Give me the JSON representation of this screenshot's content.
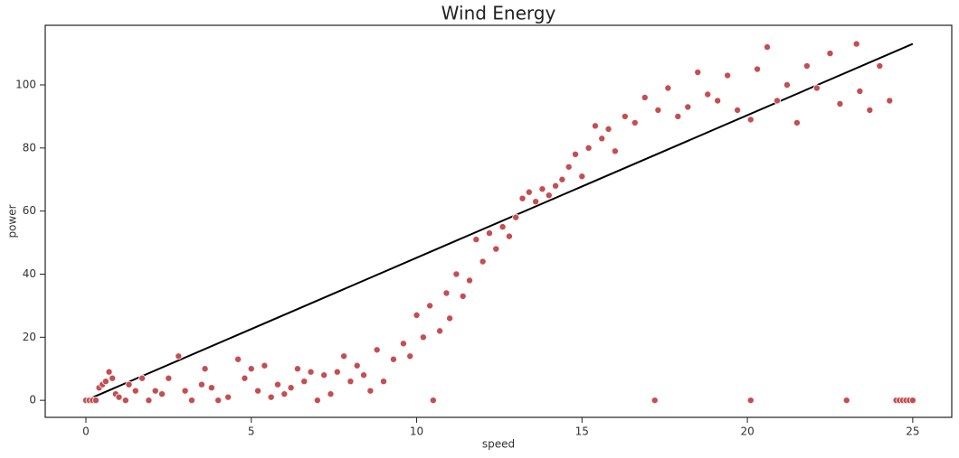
{
  "chart_data": {
    "type": "scatter",
    "title": "Wind Energy",
    "x_label": "speed",
    "y_label": "power",
    "xlim": [
      -1.23,
      26.18
    ],
    "ylim": [
      -5.4,
      118.9
    ],
    "xticks": [
      0,
      5,
      10,
      15,
      20,
      25
    ],
    "yticks": [
      0,
      20,
      40,
      60,
      80,
      100
    ],
    "points": {
      "color": "#c44e52",
      "x": [
        0,
        0.1,
        0.2,
        0.3,
        0.4,
        0.5,
        0.6,
        0.7,
        0.8,
        0.9,
        1.0,
        1.2,
        1.3,
        1.5,
        1.7,
        1.9,
        2.1,
        2.3,
        2.5,
        2.8,
        3.0,
        3.2,
        3.5,
        3.6,
        3.8,
        4.0,
        4.3,
        4.6,
        4.8,
        5.0,
        5.2,
        5.4,
        5.6,
        5.8,
        6.0,
        6.2,
        6.4,
        6.6,
        6.8,
        7.0,
        7.2,
        7.4,
        7.6,
        7.8,
        8.0,
        8.2,
        8.4,
        8.6,
        8.8,
        9.0,
        9.3,
        9.6,
        9.8,
        10.0,
        10.2,
        10.4,
        10.5,
        10.7,
        10.9,
        11.0,
        11.2,
        11.4,
        11.6,
        11.8,
        12.0,
        12.2,
        12.4,
        12.6,
        12.8,
        13.0,
        13.2,
        13.4,
        13.6,
        13.8,
        14.0,
        14.2,
        14.4,
        14.6,
        14.8,
        15.0,
        15.2,
        15.4,
        15.6,
        15.8,
        16.0,
        16.3,
        16.6,
        16.9,
        17.2,
        17.3,
        17.6,
        17.9,
        18.2,
        18.5,
        18.8,
        19.1,
        19.4,
        19.7,
        20.1,
        20.1,
        20.3,
        20.6,
        20.9,
        21.2,
        21.5,
        21.8,
        22.1,
        22.5,
        22.8,
        23.0,
        23.3,
        23.4,
        23.7,
        24.0,
        24.3,
        24.5,
        24.6,
        24.7,
        24.8,
        24.9,
        25.0
      ],
      "y": [
        0,
        0,
        0,
        0,
        4,
        5,
        6,
        9,
        7,
        2,
        1,
        0,
        5,
        3,
        7,
        0,
        3,
        2,
        7,
        14,
        3,
        0,
        5,
        10,
        4,
        0,
        1,
        13,
        7,
        10,
        3,
        11,
        1,
        5,
        2,
        4,
        10,
        6,
        9,
        0,
        8,
        2,
        9,
        14,
        6,
        11,
        8,
        3,
        16,
        6,
        13,
        18,
        14,
        27,
        20,
        30,
        0,
        22,
        34,
        26,
        40,
        33,
        38,
        51,
        44,
        53,
        48,
        55,
        52,
        58,
        64,
        66,
        63,
        67,
        65,
        68,
        70,
        74,
        78,
        71,
        80,
        87,
        83,
        86,
        79,
        90,
        88,
        96,
        0,
        92,
        99,
        90,
        93,
        104,
        97,
        95,
        103,
        92,
        0,
        89,
        105,
        112,
        95,
        100,
        88,
        106,
        99,
        110,
        94,
        0,
        113,
        98,
        92,
        106,
        95,
        0,
        0,
        0,
        0,
        0,
        0
      ]
    },
    "fit": {
      "color": "#000000",
      "x": [
        0,
        25
      ],
      "y": [
        0,
        113
      ]
    }
  }
}
